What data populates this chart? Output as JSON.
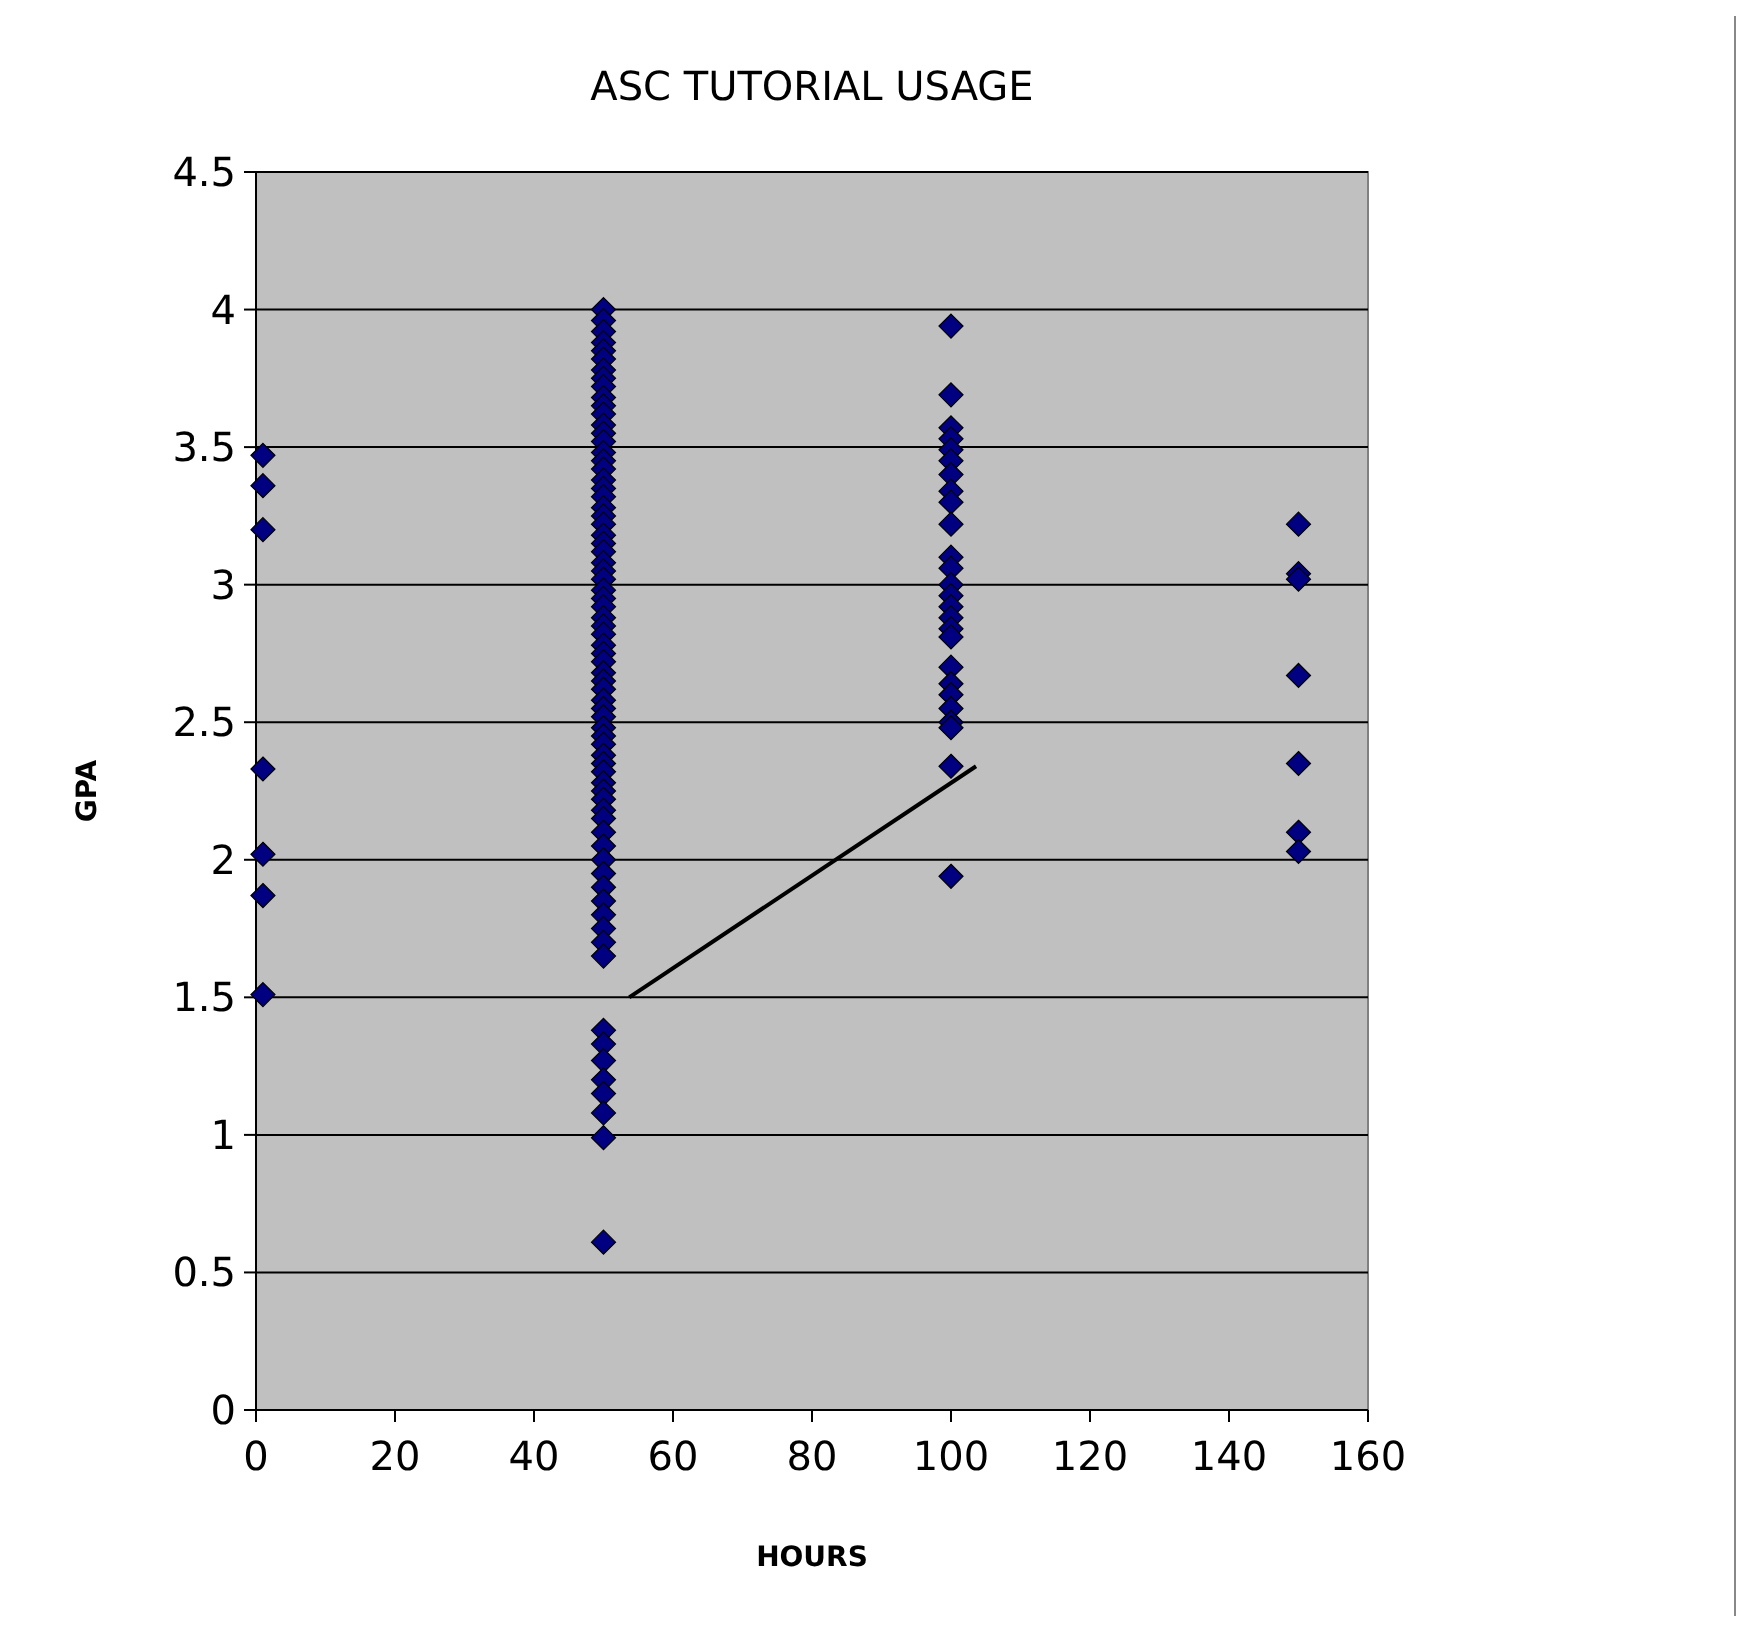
{
  "chart_data": {
    "type": "scatter",
    "title": "ASC TUTORIAL USAGE",
    "xlabel": "HOURS",
    "ylabel": "GPA",
    "xlim": [
      0,
      160
    ],
    "xticks": [
      0,
      20,
      40,
      60,
      80,
      100,
      120,
      140,
      160
    ],
    "ylim": [
      0,
      4.5
    ],
    "yticks": [
      0,
      0.5,
      1,
      1.5,
      2,
      2.5,
      3,
      3.5,
      4,
      4.5
    ],
    "grid": "y",
    "marker": "diamond",
    "series": [
      {
        "color": "#000080",
        "x": [
          1,
          1,
          1,
          1,
          1,
          1,
          1,
          50,
          50,
          50,
          50,
          50,
          50,
          50,
          50,
          50,
          50,
          50,
          50,
          50,
          50,
          50,
          50,
          50,
          50,
          50,
          50,
          50,
          50,
          50,
          50,
          50,
          50,
          50,
          50,
          50,
          50,
          50,
          50,
          50,
          50,
          50,
          50,
          50,
          50,
          50,
          50,
          50,
          50,
          50,
          50,
          50,
          50,
          50,
          50,
          50,
          50,
          50,
          50,
          50,
          50,
          50,
          50,
          50,
          50,
          50,
          50,
          50,
          50,
          50,
          50,
          50,
          50,
          50,
          50,
          50,
          50,
          50,
          50,
          50,
          50,
          100,
          100,
          100,
          100,
          100,
          100,
          100,
          100,
          100,
          100,
          100,
          100,
          100,
          100,
          100,
          100,
          100,
          100,
          100,
          100,
          100,
          100,
          100,
          100,
          100,
          100,
          150,
          150,
          150,
          150,
          150,
          150,
          150
        ],
        "values": [
          3.47,
          3.36,
          3.2,
          2.33,
          2.02,
          1.87,
          1.51,
          4.0,
          3.96,
          3.92,
          3.88,
          3.85,
          3.82,
          3.78,
          3.75,
          3.72,
          3.68,
          3.65,
          3.62,
          3.58,
          3.55,
          3.52,
          3.48,
          3.45,
          3.42,
          3.38,
          3.35,
          3.32,
          3.28,
          3.25,
          3.22,
          3.18,
          3.15,
          3.12,
          3.08,
          3.05,
          3.02,
          2.98,
          2.95,
          2.92,
          2.88,
          2.85,
          2.82,
          2.78,
          2.75,
          2.72,
          2.68,
          2.65,
          2.62,
          2.58,
          2.55,
          2.52,
          2.48,
          2.45,
          2.42,
          2.38,
          2.35,
          2.32,
          2.28,
          2.25,
          2.22,
          2.18,
          2.15,
          2.1,
          2.05,
          2.0,
          1.95,
          1.9,
          1.85,
          1.8,
          1.75,
          1.7,
          1.65,
          1.38,
          1.33,
          1.27,
          1.2,
          1.15,
          1.08,
          0.99,
          0.61,
          3.94,
          3.69,
          3.57,
          3.53,
          3.49,
          3.45,
          3.4,
          3.34,
          3.3,
          3.22,
          3.1,
          3.06,
          3.0,
          2.96,
          2.92,
          2.88,
          2.84,
          2.81,
          2.7,
          2.64,
          2.6,
          2.55,
          2.5,
          2.48,
          2.34,
          1.94,
          3.22,
          3.04,
          3.02,
          2.67,
          2.35,
          2.1,
          2.03
        ]
      },
      {
        "type": "line",
        "color": "#000000",
        "marker": "none",
        "x": [
          53.7,
          103.6
        ],
        "values": [
          1.5,
          2.34
        ]
      }
    ]
  }
}
